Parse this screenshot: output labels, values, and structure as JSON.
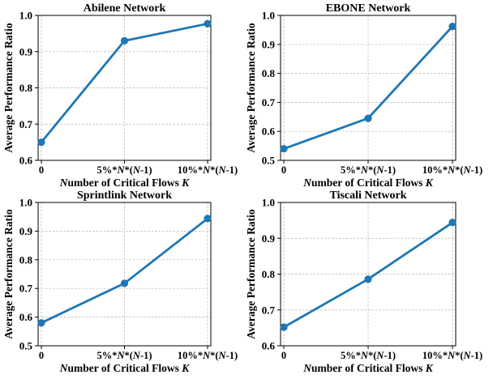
{
  "chart_data": [
    {
      "type": "line",
      "title": "Abilene Network",
      "xlabel": "Number of Critical Flows K",
      "ylabel": "Average Performance Ratio",
      "categories": [
        "0",
        "5%*N*(N-1)",
        "10%*N*(N-1)"
      ],
      "values": [
        0.65,
        0.93,
        0.977
      ],
      "ylim": [
        0.6,
        1.0
      ],
      "yticks": [
        "0.6",
        "0.7",
        "0.8",
        "0.9",
        "1.0"
      ],
      "grid": true,
      "color": "#1f77b4"
    },
    {
      "type": "line",
      "title": "EBONE Network",
      "xlabel": "Number of Critical Flows K",
      "ylabel": "Average Performance Ratio",
      "categories": [
        "0",
        "5%*N*(N-1)",
        "10%*N*(N-1)"
      ],
      "values": [
        0.54,
        0.645,
        0.962
      ],
      "ylim": [
        0.5,
        1.0
      ],
      "yticks": [
        "0.5",
        "0.6",
        "0.7",
        "0.8",
        "0.9",
        "1.0"
      ],
      "grid": true,
      "color": "#1f77b4"
    },
    {
      "type": "line",
      "title": "Sprintlink Network",
      "xlabel": "Number of Critical Flows K",
      "ylabel": "Average Performance Ratio",
      "categories": [
        "0",
        "5%*N*(N-1)",
        "10%*N*(N-1)"
      ],
      "values": [
        0.58,
        0.718,
        0.944
      ],
      "ylim": [
        0.5,
        1.0
      ],
      "yticks": [
        "0.5",
        "0.6",
        "0.7",
        "0.8",
        "0.9",
        "1.0"
      ],
      "grid": true,
      "color": "#1f77b4"
    },
    {
      "type": "line",
      "title": "Tiscali Network",
      "xlabel": "Number of Critical Flows K",
      "ylabel": "Average Performance Ratio",
      "categories": [
        "0",
        "5%*N*(N-1)",
        "10%*N*(N-1)"
      ],
      "values": [
        0.652,
        0.786,
        0.944
      ],
      "ylim": [
        0.6,
        1.0
      ],
      "yticks": [
        "0.6",
        "0.7",
        "0.8",
        "0.9",
        "1.0"
      ],
      "grid": true,
      "color": "#1f77b4"
    }
  ]
}
